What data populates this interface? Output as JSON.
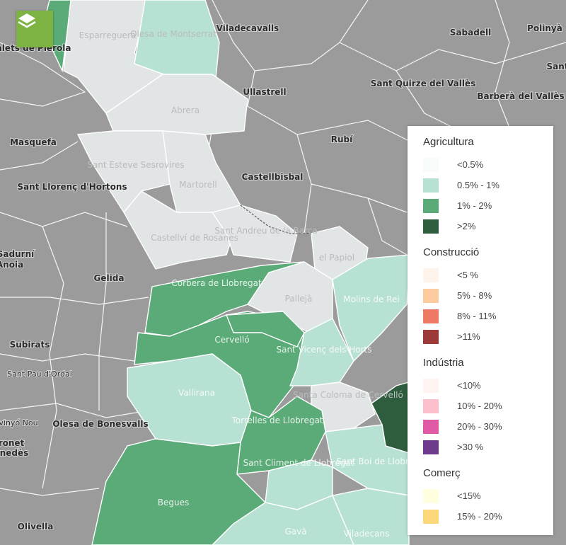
{
  "map": {
    "municipalities_gray": [
      "Hostalets de Pierola",
      "Viladecavalls",
      "Sabadell",
      "Polinyà",
      "Sant Quirze del Vallès",
      "Barberà del Vallès",
      "Ullastrell",
      "Masquefa",
      "Rubí",
      "Castellbisbal",
      "Sant Llorenç d'Hortons",
      "Sadurní",
      "Anoia",
      "Gelida",
      "Subirats",
      "Sant Pau d'Ordal",
      "vinyó Nou",
      "ronet",
      "nedès",
      "Olesa de Bonesvalls",
      "Olivella",
      "Sant"
    ],
    "municipalities_colored": [
      "Esparreguera",
      "Olesa de Montserrat",
      "Abrera",
      "Sant Esteve Sesrovires",
      "Martorell",
      "Castellví de Rosanes",
      "Sant Andreu de la Barca",
      "el Papiol",
      "Corbera de Llobregat",
      "Pallejà",
      "Molins de Rei",
      "Cervelló",
      "Sant Vicenç dels Horts",
      "Vallirana",
      "Santa Coloma de Cervelló",
      "Torrelles de Llobregat",
      "Sant Boi de Llobregat",
      "Sant Climent de Llobregat",
      "Begues",
      "Gavà",
      "Viladecans"
    ]
  },
  "layer_button": {
    "icon": "layers-icon",
    "color": "#7cb342"
  },
  "legend": {
    "sections": [
      {
        "title": "Agricultura",
        "items": [
          {
            "label": "<0.5%",
            "color": "#f7fcfb"
          },
          {
            "label": "0.5% - 1%",
            "color": "#b7e1d3"
          },
          {
            "label": "1% - 2%",
            "color": "#5aab78"
          },
          {
            "label": ">2%",
            "color": "#2d5d3d"
          }
        ]
      },
      {
        "title": "Construcció",
        "items": [
          {
            "label": "<5 %",
            "color": "#fff4ec"
          },
          {
            "label": "5% - 8%",
            "color": "#fccba0"
          },
          {
            "label": "8% - 11%",
            "color": "#ee7a66"
          },
          {
            "label": ">11%",
            "color": "#9c3a3a"
          }
        ]
      },
      {
        "title": "Indústria",
        "items": [
          {
            "label": "<10%",
            "color": "#fff4f2"
          },
          {
            "label": "10% - 20%",
            "color": "#fcc0cc"
          },
          {
            "label": "20% - 30%",
            "color": "#e05aa5"
          },
          {
            "label": ">30 %",
            "color": "#6e3b8d"
          }
        ]
      },
      {
        "title": "Comerç",
        "items": [
          {
            "label": "<15%",
            "color": "#ffffe0"
          },
          {
            "label": "15% - 20%",
            "color": "#fcd77a"
          }
        ]
      }
    ]
  }
}
